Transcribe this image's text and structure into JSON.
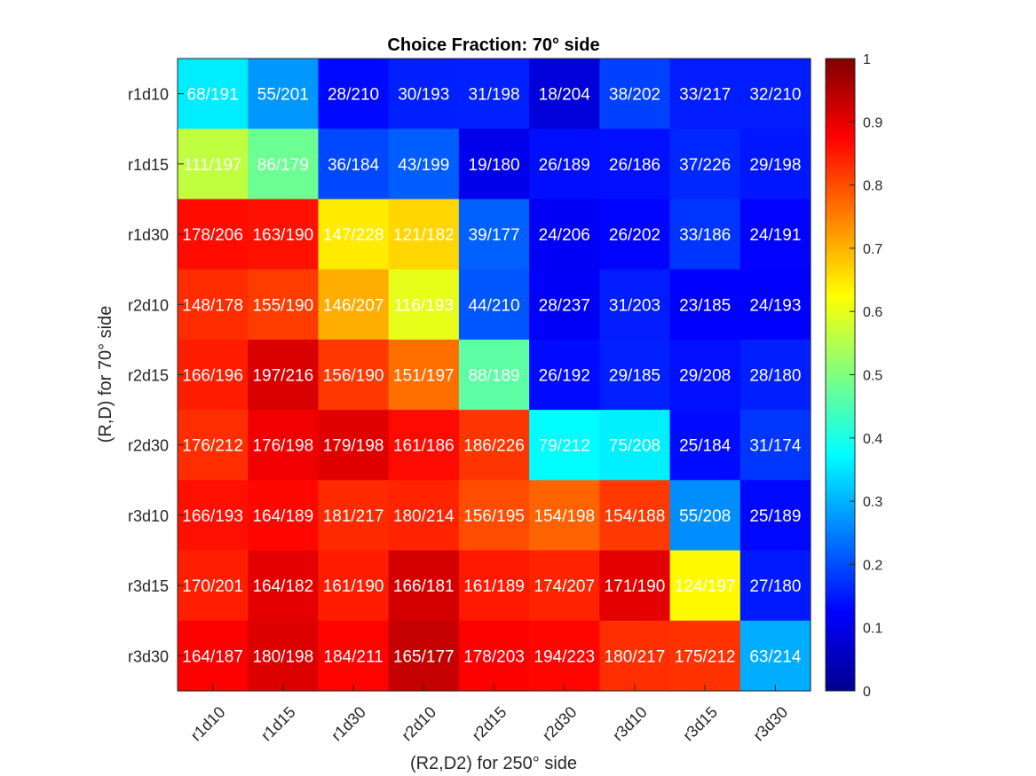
{
  "chart_data": {
    "type": "heatmap",
    "title": "Choice Fraction: 70° side",
    "xlabel": "(R2,D2) for 250° side",
    "ylabel": "(R,D) for 70° side",
    "x_categories": [
      "r1d10",
      "r1d15",
      "r1d30",
      "r2d10",
      "r2d15",
      "r2d30",
      "r3d10",
      "r3d15",
      "r3d30"
    ],
    "y_categories": [
      "r1d10",
      "r1d15",
      "r1d30",
      "r2d10",
      "r2d15",
      "r2d30",
      "r3d10",
      "r3d15",
      "r3d30"
    ],
    "cells": [
      [
        "68/191",
        "55/201",
        "28/210",
        "30/193",
        "31/198",
        "18/204",
        "38/202",
        "33/217",
        "32/210"
      ],
      [
        "111/197",
        "86/179",
        "36/184",
        "43/199",
        "19/180",
        "26/189",
        "26/186",
        "37/226",
        "29/198"
      ],
      [
        "178/206",
        "163/190",
        "147/228",
        "121/182",
        "39/177",
        "24/206",
        "26/202",
        "33/186",
        "24/191"
      ],
      [
        "148/178",
        "155/190",
        "146/207",
        "116/193",
        "44/210",
        "28/237",
        "31/203",
        "23/185",
        "24/193"
      ],
      [
        "166/196",
        "197/216",
        "156/190",
        "151/197",
        "88/189",
        "26/192",
        "29/185",
        "29/208",
        "28/180"
      ],
      [
        "176/212",
        "176/198",
        "179/198",
        "161/186",
        "186/226",
        "79/212",
        "75/208",
        "25/184",
        "31/174"
      ],
      [
        "166/193",
        "164/189",
        "181/217",
        "180/214",
        "156/195",
        "154/198",
        "154/188",
        "55/208",
        "25/189"
      ],
      [
        "170/201",
        "164/182",
        "161/190",
        "166/181",
        "161/189",
        "174/207",
        "171/190",
        "124/197",
        "27/180"
      ],
      [
        "164/187",
        "180/198",
        "184/211",
        "165/177",
        "178/203",
        "194/223",
        "180/217",
        "175/212",
        "63/214"
      ]
    ],
    "colorbar": {
      "colormap": "jet",
      "range": [
        0,
        1
      ],
      "ticks": [
        "0",
        "0.1",
        "0.2",
        "0.3",
        "0.4",
        "0.5",
        "0.6",
        "0.7",
        "0.8",
        "0.9",
        "1"
      ]
    },
    "grid": false,
    "legend": "colorbar-right"
  }
}
